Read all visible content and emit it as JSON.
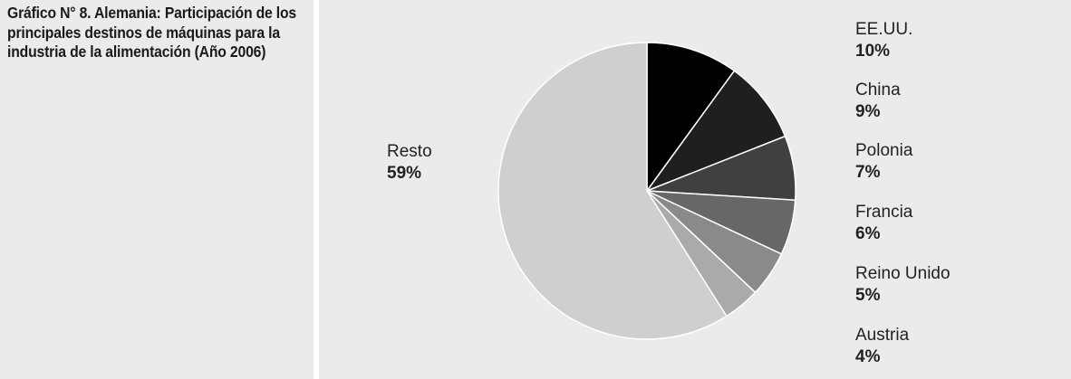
{
  "title": "Gráfico N° 8. Alemania: Participación de los principales destinos de máquinas para la industria de la alimentación (Año 2006)",
  "chart_data": {
    "type": "pie",
    "title": "Gráfico N° 8. Alemania: Participación de los principales destinos de máquinas para la industria de la alimentación (Año 2006)",
    "slices": [
      {
        "label": "EE.UU.",
        "value": 10,
        "value_label": "10%",
        "color": "#000000"
      },
      {
        "label": "China",
        "value": 9,
        "value_label": "9%",
        "color": "#1f1f1f"
      },
      {
        "label": "Polonia",
        "value": 7,
        "value_label": "7%",
        "color": "#404040"
      },
      {
        "label": "Francia",
        "value": 6,
        "value_label": "6%",
        "color": "#676767"
      },
      {
        "label": "Reino Unido",
        "value": 5,
        "value_label": "5%",
        "color": "#8a8a8a"
      },
      {
        "label": "Austria",
        "value": 4,
        "value_label": "4%",
        "color": "#aaaaaa"
      },
      {
        "label": "Resto",
        "value": 59,
        "value_label": "59%",
        "color": "#cfcfcf"
      }
    ],
    "start_angle": "12 o'clock",
    "direction": "clockwise",
    "slice_border_color": "#ffffff",
    "legend": "none (labels next to slices)"
  }
}
